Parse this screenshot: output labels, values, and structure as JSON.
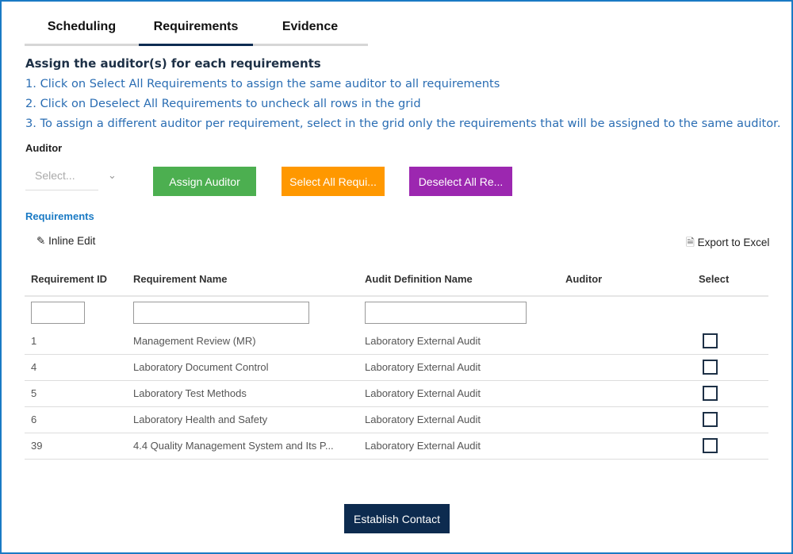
{
  "tabs": [
    {
      "label": "Scheduling"
    },
    {
      "label": "Requirements",
      "active": true
    },
    {
      "label": "Evidence"
    }
  ],
  "heading": "Assign the auditor(s) for each requirements",
  "instructions": [
    "1. Click on Select All Requirements to assign the same auditor to all requirements",
    "2. Click on Deselect All Requirements to uncheck all rows in the grid",
    "3. To assign a different auditor per requirement, select in the grid only the requirements that will be assigned to the same auditor."
  ],
  "auditor": {
    "label": "Auditor",
    "placeholder": "Select..."
  },
  "buttons": {
    "assign": "Assign Auditor",
    "select_all": "Select All Requi...",
    "deselect_all": "Deselect All Re...",
    "establish": "Establish Contact"
  },
  "colors": {
    "assign": "#4caf50",
    "select_all": "#ff9800",
    "deselect_all": "#9c27b0",
    "primary": "#0d2b4f"
  },
  "grid": {
    "title": "Requirements",
    "inline_edit": "Inline Edit",
    "export": "Export to Excel",
    "columns": [
      "Requirement ID",
      "Requirement Name",
      "Audit Definition Name",
      "Auditor",
      "Select"
    ],
    "rows": [
      {
        "id": "1",
        "name": "Management Review (MR)",
        "audit": "Laboratory External Audit",
        "auditor": "",
        "selected": false
      },
      {
        "id": "4",
        "name": "Laboratory Document Control",
        "audit": "Laboratory External Audit",
        "auditor": "",
        "selected": false
      },
      {
        "id": "5",
        "name": "Laboratory Test Methods",
        "audit": "Laboratory External Audit",
        "auditor": "",
        "selected": false
      },
      {
        "id": "6",
        "name": "Laboratory Health and Safety",
        "audit": "Laboratory External Audit",
        "auditor": "",
        "selected": false
      },
      {
        "id": "39",
        "name": "4.4 Quality Management System and Its P...",
        "audit": "Laboratory External Audit",
        "auditor": "",
        "selected": false
      }
    ]
  }
}
